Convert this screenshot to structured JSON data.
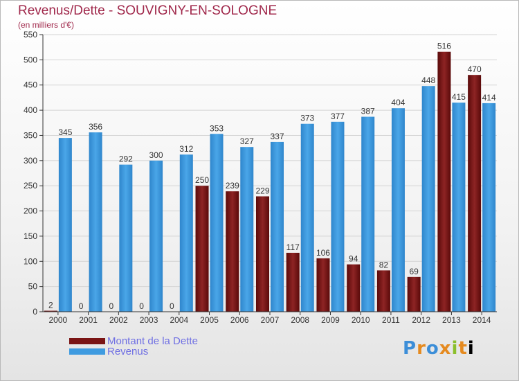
{
  "chart_data": {
    "type": "bar",
    "title": "Revenus/Dette - SOUVIGNY-EN-SOLOGNE",
    "subtitle": "(en milliers d'€)",
    "categories": [
      "2000",
      "2001",
      "2002",
      "2003",
      "2004",
      "2005",
      "2006",
      "2007",
      "2008",
      "2009",
      "2010",
      "2011",
      "2012",
      "2013",
      "2014"
    ],
    "series": [
      {
        "name": "Montant de la Dette",
        "color": "#7a1414",
        "values": [
          2,
          0,
          0,
          0,
          0,
          250,
          239,
          229,
          117,
          106,
          94,
          82,
          69,
          516,
          470
        ]
      },
      {
        "name": "Revenus",
        "color": "#3f9be0",
        "values": [
          345,
          356,
          292,
          300,
          312,
          353,
          327,
          337,
          373,
          377,
          387,
          404,
          448,
          415,
          414
        ]
      }
    ],
    "yticks": [
      0,
      50,
      100,
      150,
      200,
      250,
      300,
      350,
      400,
      450,
      500,
      550
    ],
    "ylim": [
      0,
      550
    ],
    "grid": true,
    "legend_position": "bottom-left"
  },
  "logo": {
    "text": "Proxiti"
  }
}
